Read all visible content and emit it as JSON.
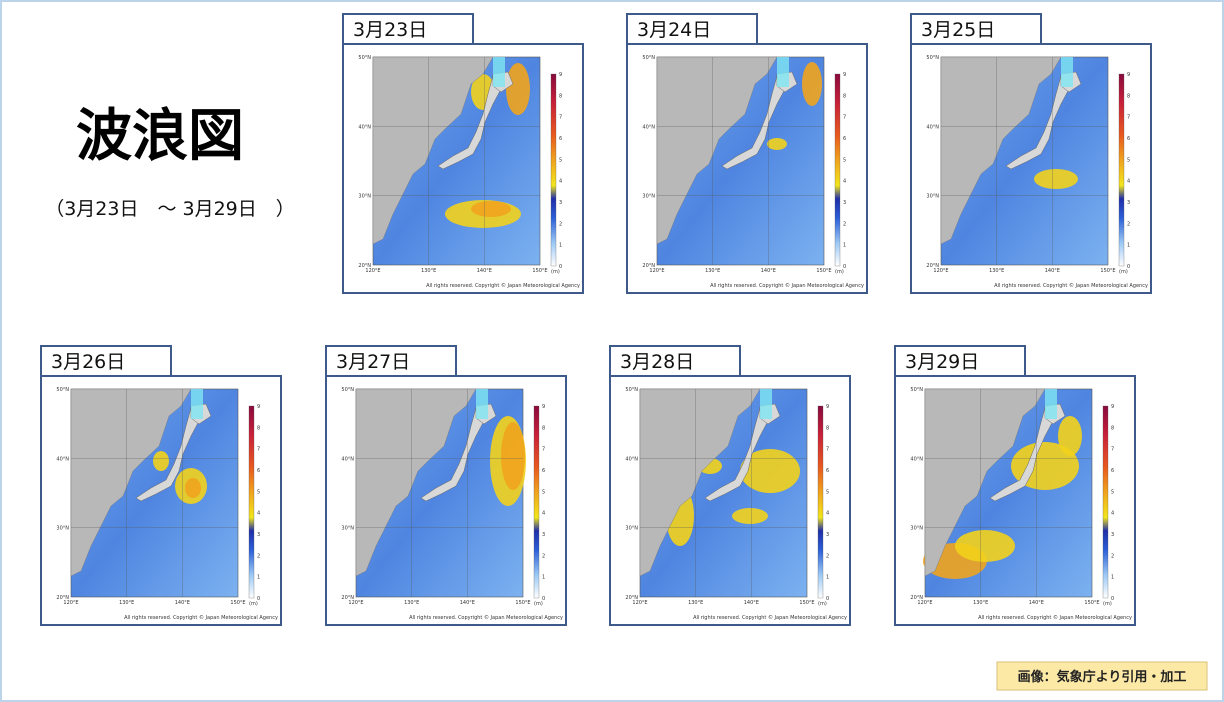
{
  "header": {
    "title": "波浪図",
    "subtitle": "（3月23日　～ 3月29日　）"
  },
  "maps": {
    "lat_labels": [
      "50°N",
      "40°N",
      "30°N",
      "20°N"
    ],
    "lon_labels": [
      "120°E",
      "130°E",
      "140°E",
      "150°E"
    ],
    "scale_labels": [
      "9",
      "8",
      "7",
      "6",
      "5",
      "4",
      "3",
      "2",
      "1",
      "0"
    ],
    "scale_unit": "(m)",
    "copyright": "All rights reserved. Copyright © Japan Meteorological Agency"
  },
  "panels": [
    {
      "date": "3月23日"
    },
    {
      "date": "3月24日"
    },
    {
      "date": "3月25日"
    },
    {
      "date": "3月26日"
    },
    {
      "date": "3月27日"
    },
    {
      "date": "3月28日"
    },
    {
      "date": "3月29日"
    }
  ],
  "credit": "画像：気象庁より引用・加工"
}
